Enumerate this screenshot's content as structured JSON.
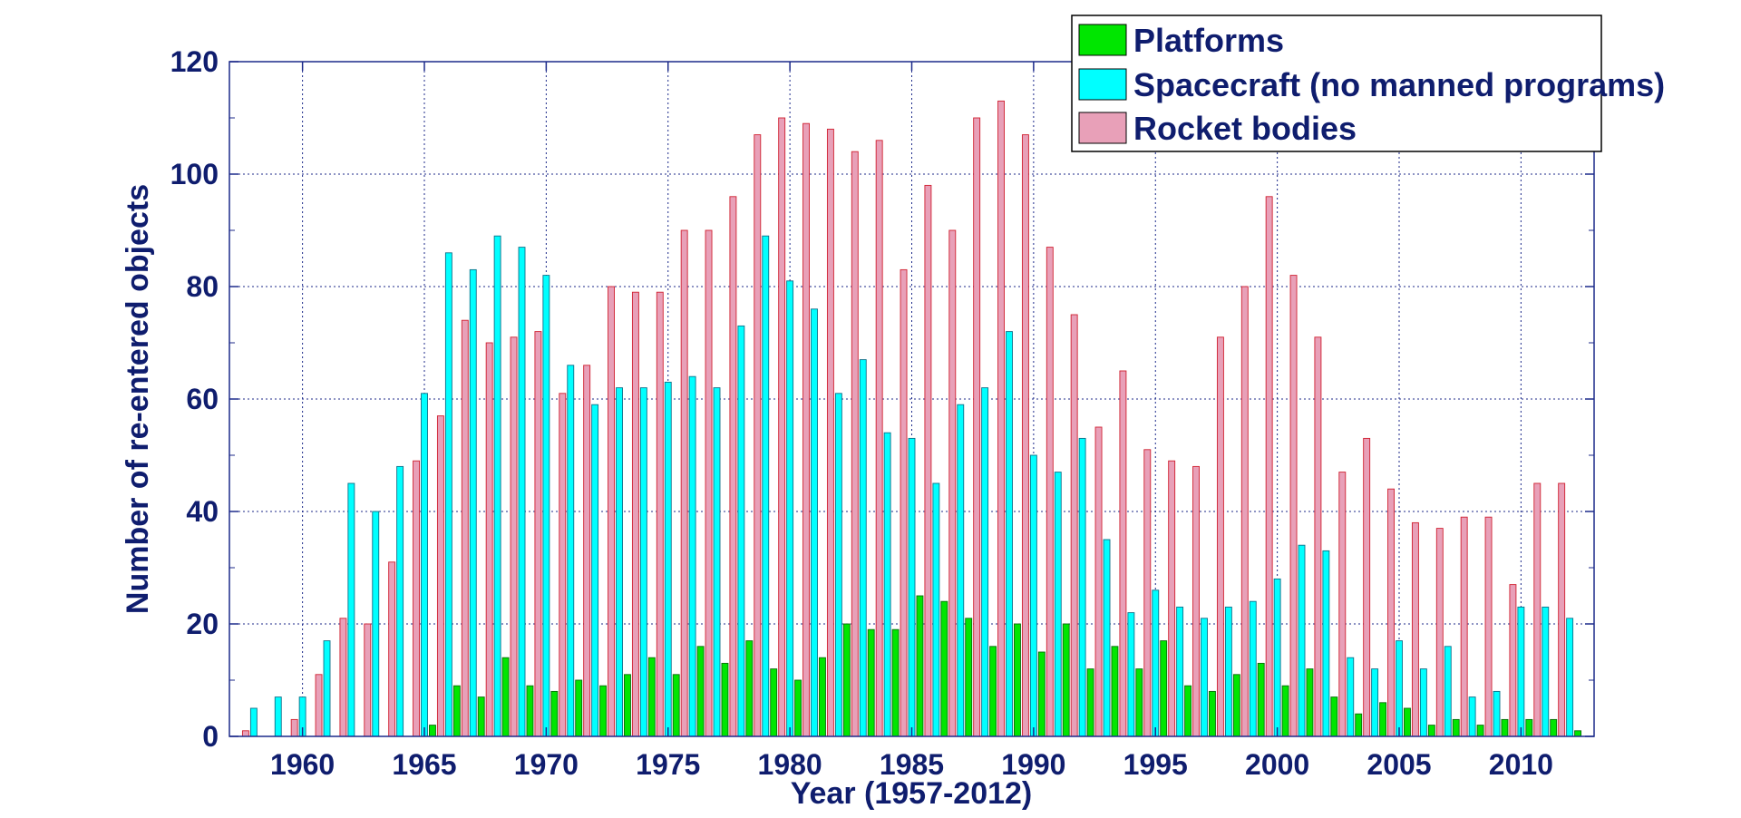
{
  "chart_data": {
    "type": "bar",
    "xlabel": "Year (1957-2012)",
    "ylabel": "Number of re-entered objects",
    "xlim": [
      1957,
      2013
    ],
    "ylim": [
      0,
      120
    ],
    "x_ticks": [
      1960,
      1965,
      1970,
      1975,
      1980,
      1985,
      1990,
      1995,
      2000,
      2005,
      2010
    ],
    "y_ticks": [
      0,
      20,
      40,
      60,
      80,
      100,
      120
    ],
    "grid": true,
    "legend_position": "top-right",
    "categories": [
      1958,
      1959,
      1960,
      1961,
      1962,
      1963,
      1964,
      1965,
      1966,
      1967,
      1968,
      1969,
      1970,
      1971,
      1972,
      1973,
      1974,
      1975,
      1976,
      1977,
      1978,
      1979,
      1980,
      1981,
      1982,
      1983,
      1984,
      1985,
      1986,
      1987,
      1988,
      1989,
      1990,
      1991,
      1992,
      1993,
      1994,
      1995,
      1996,
      1997,
      1998,
      1999,
      2000,
      2001,
      2002,
      2003,
      2004,
      2005,
      2006,
      2007,
      2008,
      2009,
      2010,
      2011,
      2012
    ],
    "series": [
      {
        "name": "Platforms",
        "color": "#00e600",
        "values": [
          0,
          0,
          0,
          0,
          0,
          0,
          0,
          2,
          9,
          7,
          14,
          9,
          8,
          10,
          9,
          11,
          14,
          11,
          16,
          13,
          17,
          12,
          10,
          14,
          20,
          19,
          19,
          25,
          24,
          21,
          16,
          20,
          15,
          20,
          12,
          16,
          12,
          17,
          9,
          8,
          11,
          13,
          9,
          12,
          7,
          4,
          6,
          5,
          2,
          3,
          2,
          3,
          3,
          3,
          1
        ]
      },
      {
        "name": "Spacecraft (no manned programs)",
        "color": "#00ffff",
        "values": [
          5,
          7,
          7,
          17,
          45,
          40,
          48,
          61,
          86,
          83,
          89,
          87,
          82,
          66,
          59,
          62,
          62,
          63,
          64,
          62,
          73,
          89,
          81,
          76,
          61,
          67,
          54,
          53,
          45,
          59,
          62,
          72,
          50,
          47,
          53,
          35,
          22,
          26,
          23,
          21,
          23,
          24,
          28,
          34,
          33,
          14,
          12,
          17,
          12,
          16,
          7,
          8,
          23,
          23,
          21
        ]
      },
      {
        "name": "Rocket bodies",
        "color": "#e8a0b8",
        "values": [
          1,
          0,
          3,
          11,
          21,
          20,
          31,
          49,
          57,
          74,
          70,
          71,
          72,
          61,
          66,
          80,
          79,
          79,
          90,
          90,
          96,
          107,
          110,
          109,
          108,
          104,
          106,
          83,
          98,
          90,
          110,
          113,
          107,
          87,
          75,
          55,
          65,
          51,
          49,
          48,
          71,
          80,
          96,
          82,
          71,
          47,
          53,
          44,
          38,
          37,
          39,
          39,
          27,
          45,
          45
        ]
      }
    ]
  }
}
